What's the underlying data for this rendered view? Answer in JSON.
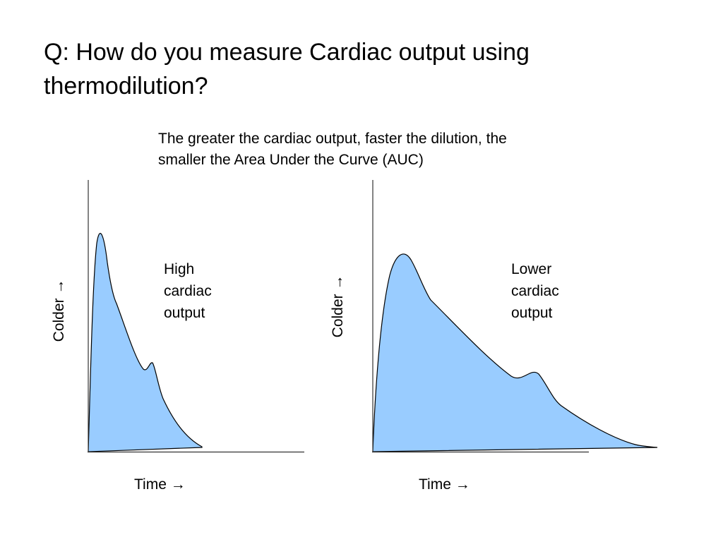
{
  "slide": {
    "title": "Q: How do you measure Cardiac output using thermodilution?",
    "caption": "The greater the cardiac output, faster the dilution, the smaller the Area Under the Curve (AUC)"
  },
  "graphs": {
    "left": {
      "label_lines": [
        "High",
        "cardiac",
        "output"
      ],
      "xlabel": "Time →",
      "ylabel": "Colder →"
    },
    "right": {
      "label_lines": [
        "Lower",
        "cardiac",
        "output"
      ],
      "xlabel": "Time →",
      "ylabel": "Colder →"
    }
  },
  "colors": {
    "fill": "#99ccff",
    "stroke": "#000000",
    "axis": "#333333"
  }
}
